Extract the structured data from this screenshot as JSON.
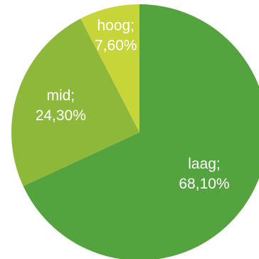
{
  "chart_data": {
    "type": "pie",
    "title": "",
    "start": "12 o'clock",
    "direction": "clockwise",
    "slices": [
      {
        "name": "laag",
        "value": 68.1,
        "label_line1": "laag;",
        "label_line2": "68,10%",
        "color": "#55a33e"
      },
      {
        "name": "mid",
        "value": 24.3,
        "label_line1": "mid;",
        "label_line2": "24,30%",
        "color": "#8db83a"
      },
      {
        "name": "hoog",
        "value": 7.6,
        "label_line1": "hoog;",
        "label_line2": "7,60%",
        "color": "#c7d43a"
      }
    ]
  }
}
